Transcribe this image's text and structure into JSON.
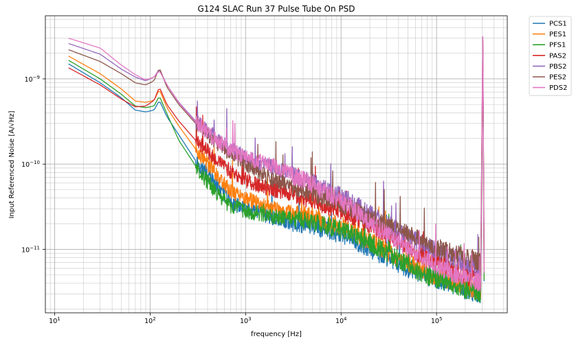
{
  "chart_data": {
    "type": "line",
    "title": "G124 SLAC Run 37 Pulse Tube On PSD",
    "xlabel": "frequency [Hz]",
    "ylabel": "Input Referenced Noise [A/√Hz]",
    "xscale": "log",
    "yscale": "log",
    "xlim": [
      8,
      550000
    ],
    "ylim": [
      1.8e-12,
      5.5e-09
    ],
    "grid": true,
    "legend_position": "outside-top-right",
    "x_ticks": [
      {
        "value": 10,
        "base": "10",
        "exp": "1"
      },
      {
        "value": 100,
        "base": "10",
        "exp": "2"
      },
      {
        "value": 1000,
        "base": "10",
        "exp": "3"
      },
      {
        "value": 10000,
        "base": "10",
        "exp": "4"
      },
      {
        "value": 100000,
        "base": "10",
        "exp": "5"
      }
    ],
    "y_ticks": [
      {
        "value": 1e-11,
        "base": "10",
        "exp": "−11"
      },
      {
        "value": 1e-10,
        "base": "10",
        "exp": "−10"
      },
      {
        "value": 1e-09,
        "base": "10",
        "exp": "−9"
      }
    ],
    "x": [
      14,
      30,
      50,
      70,
      90,
      110,
      125,
      150,
      200,
      300,
      500,
      700,
      1000,
      1500,
      2000,
      3000,
      5000,
      7000,
      10000,
      15000,
      20000,
      30000,
      50000,
      70000,
      100000,
      150000,
      200000,
      250000,
      290000,
      305000,
      315000
    ],
    "series": [
      {
        "name": "PCS1",
        "color": "#1f77b4",
        "values": [
          1.5e-09,
          9e-10,
          6e-10,
          4.3e-10,
          4.1e-10,
          4.3e-10,
          5.6e-10,
          3.6e-10,
          2.2e-10,
          1.1e-10,
          5.6e-11,
          3.6e-11,
          2.9e-11,
          2.6e-11,
          2.3e-11,
          2.1e-11,
          1.9e-11,
          1.65e-11,
          1.5e-11,
          1.2e-11,
          1e-11,
          8e-12,
          6e-12,
          5e-12,
          4.3e-12,
          3.8e-12,
          3.3e-12,
          3.1e-12,
          3e-12,
          2.4e-09,
          3.2e-12
        ]
      },
      {
        "name": "PES1",
        "color": "#ff7f0e",
        "values": [
          1.85e-09,
          1.15e-09,
          7.6e-10,
          5.5e-10,
          5.3e-10,
          5.6e-10,
          7.5e-10,
          4.6e-10,
          2.8e-10,
          1.5e-10,
          7.5e-11,
          4.8e-11,
          4e-11,
          3.3e-11,
          3e-11,
          2.8e-11,
          2.4e-11,
          2.1e-11,
          1.9e-11,
          1.5e-11,
          1.25e-11,
          9.5e-12,
          7e-12,
          5.8e-12,
          4.8e-12,
          4.2e-12,
          3.7e-12,
          3.4e-12,
          3.3e-12,
          2.6e-09,
          3.4e-12
        ]
      },
      {
        "name": "PFS1",
        "color": "#2ca02c",
        "values": [
          1.65e-09,
          1e-09,
          6.6e-10,
          4.8e-10,
          4.6e-10,
          4.8e-10,
          6.3e-10,
          3.9e-10,
          1.9e-10,
          9.5e-11,
          4.5e-11,
          3.2e-11,
          2.8e-11,
          2.6e-11,
          2.4e-11,
          2.3e-11,
          2.1e-11,
          1.9e-11,
          1.7e-11,
          1.4e-11,
          1.2e-11,
          9e-12,
          6.5e-12,
          5.3e-12,
          4.5e-12,
          3.9e-12,
          3.4e-12,
          3.2e-12,
          3.1e-12,
          2.5e-09,
          3.3e-12
        ]
      },
      {
        "name": "PAS2",
        "color": "#d62728",
        "values": [
          1.35e-09,
          8.5e-10,
          5.8e-10,
          4.7e-10,
          4.8e-10,
          5.6e-10,
          8e-10,
          5e-10,
          3.2e-10,
          1.9e-10,
          1.15e-10,
          8e-11,
          6.5e-11,
          5.4e-11,
          5e-11,
          4.5e-11,
          3.8e-11,
          3.3e-11,
          2.9e-11,
          2.3e-11,
          1.9e-11,
          1.5e-11,
          1.1e-11,
          8.5e-12,
          7e-12,
          5.8e-12,
          5e-12,
          4.5e-12,
          4.3e-12,
          3e-09,
          4.4e-12
        ]
      },
      {
        "name": "PBS2",
        "color": "#9467bd",
        "values": [
          2.6e-09,
          1.95e-09,
          1.3e-09,
          1.05e-09,
          9.5e-10,
          1.05e-09,
          1.3e-09,
          8.5e-10,
          5.3e-10,
          3.2e-10,
          2e-10,
          1.5e-10,
          1.2e-10,
          1e-10,
          9e-11,
          7.5e-11,
          6e-11,
          5e-11,
          4.2e-11,
          3.2e-11,
          2.6e-11,
          2e-11,
          1.45e-11,
          1.15e-11,
          9.5e-12,
          8e-12,
          7e-12,
          6.3e-12,
          6e-12,
          3.3e-09,
          6e-12
        ]
      },
      {
        "name": "PES2",
        "color": "#8c564b",
        "values": [
          2.2e-09,
          1.6e-09,
          1.15e-09,
          9e-10,
          8.5e-10,
          9.5e-10,
          1.35e-09,
          8e-10,
          5e-10,
          3e-10,
          1.8e-10,
          1.3e-10,
          1e-10,
          7.5e-11,
          6.5e-11,
          5.5e-11,
          4.6e-11,
          4e-11,
          3.4e-11,
          2.7e-11,
          2.3e-11,
          1.9e-11,
          1.5e-11,
          1.25e-11,
          1.05e-11,
          9e-12,
          8e-12,
          7.5e-12,
          7e-12,
          3.1e-09,
          7e-12
        ]
      },
      {
        "name": "PDS2",
        "color": "#e377c2",
        "values": [
          3e-09,
          2.3e-09,
          1.45e-09,
          1.12e-09,
          9.7e-10,
          1.05e-09,
          1.25e-09,
          8.5e-10,
          5.2e-10,
          3.1e-10,
          1.9e-10,
          1.45e-10,
          1.2e-10,
          1.05e-10,
          9.5e-11,
          7.5e-11,
          5.8e-11,
          4.6e-11,
          3.7e-11,
          2.7e-11,
          2.1e-11,
          1.55e-11,
          1.05e-11,
          8e-12,
          6.3e-12,
          5.2e-12,
          4.6e-12,
          4.2e-12,
          4e-12,
          3.3e-09,
          4e-12
        ]
      }
    ]
  }
}
